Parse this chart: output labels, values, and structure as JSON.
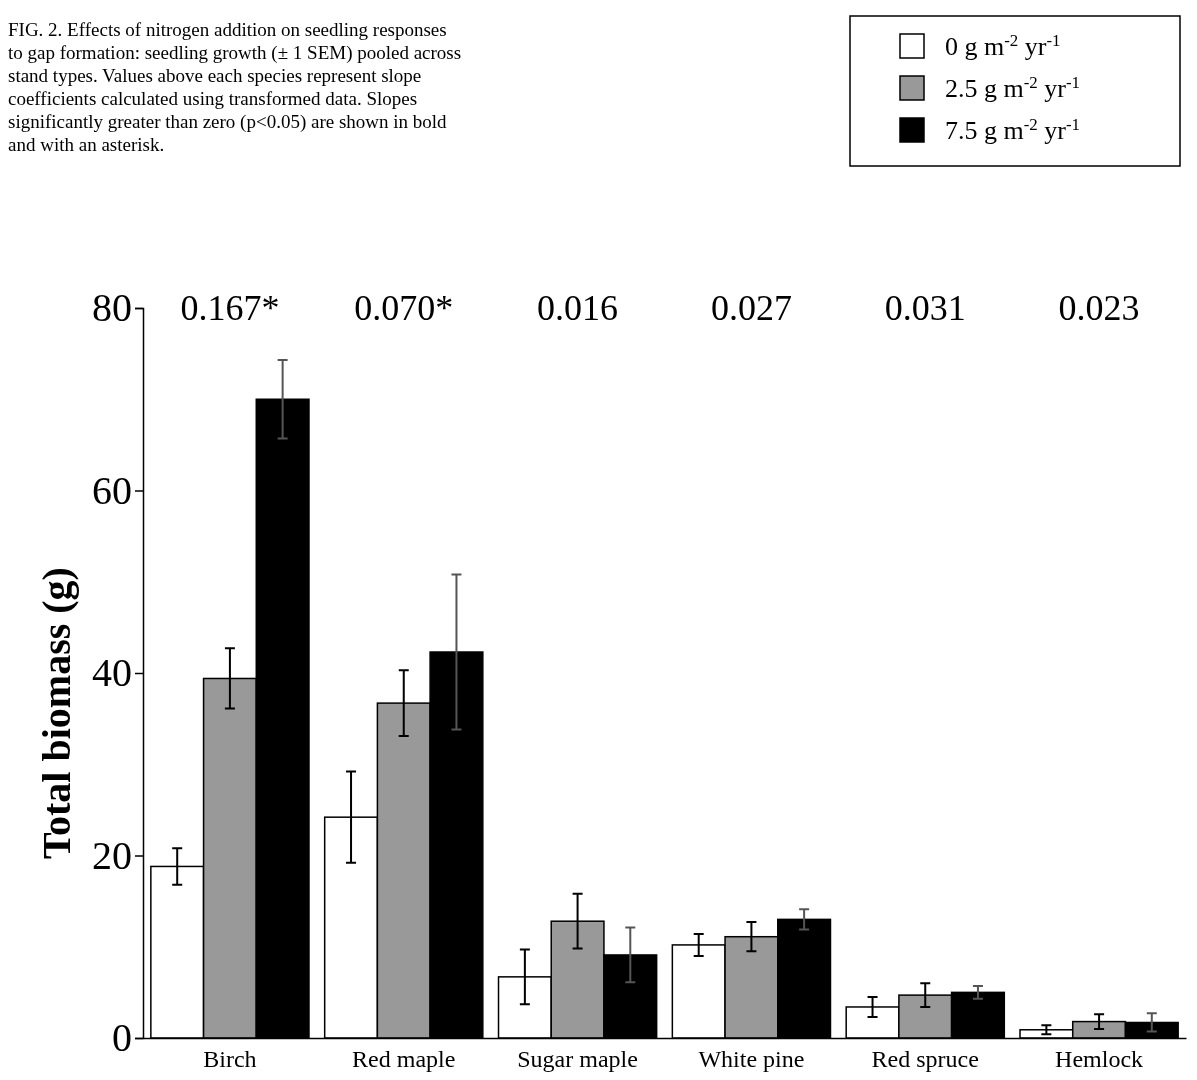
{
  "chart_data": {
    "type": "bar",
    "ylabel": "Total biomass (g)",
    "categories": [
      "Birch",
      "Red maple",
      "Sugar maple",
      "White pine",
      "Red spruce",
      "Hemlock"
    ],
    "series": [
      {
        "name": "0 g m$^{-2}$ yr$^{-1}$",
        "color": "#ffffff",
        "values": [
          18.8,
          24.2,
          6.7,
          10.2,
          3.4,
          0.9
        ],
        "errors": [
          2,
          5,
          3,
          1.2,
          1.1,
          0.5
        ]
      },
      {
        "name": "2.5 g m$^{-2}$ yr$^{-1}$",
        "color": "#999999",
        "values": [
          39.4,
          36.7,
          12.8,
          11.1,
          4.7,
          1.8
        ],
        "errors": [
          3.3,
          3.6,
          3,
          1.6,
          1.3,
          0.8
        ]
      },
      {
        "name": "7.5 g m$^{-2}$ yr$^{-1}$",
        "color": "#000000",
        "values": [
          70,
          42.3,
          9.1,
          13,
          5,
          1.7
        ],
        "errors": [
          4.3,
          8.5,
          3,
          1.1,
          0.7,
          1
        ]
      }
    ],
    "ylim": [
      0,
      80
    ],
    "yticks": [
      0,
      20,
      40,
      60,
      80
    ],
    "legend": "top right",
    "grid": false,
    "annotations": [
      "FIG. 2.  Effects of nitrogen addition on seedling responses to gap formation: seedling growth (± 1 SEM) pooled across stand types. Values above each species represent slope coefficients calculated using transformed data. Slopes significantly greater than zero (p<0.05) are shown in bold and with an asterisk.",
      "0.167*",
      "0.070*",
      "0.016",
      "0.027",
      "0.031",
      "0.023"
    ]
  }
}
